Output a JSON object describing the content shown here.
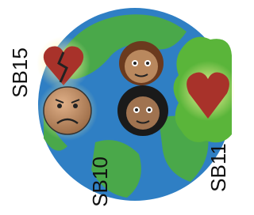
{
  "labels": [
    "SB15",
    "SB10",
    "SB11"
  ]
}
